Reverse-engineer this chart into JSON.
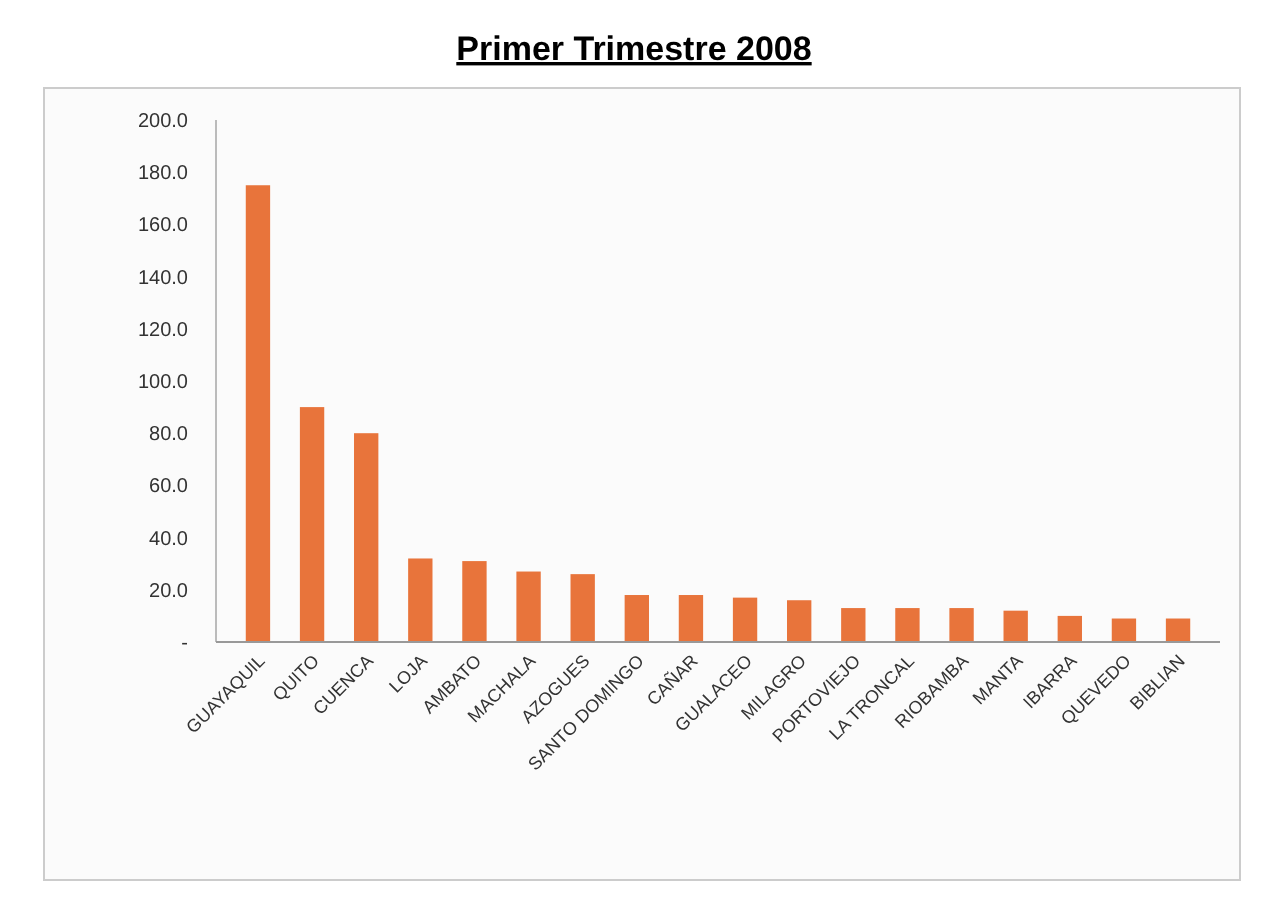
{
  "chart_data": {
    "type": "bar",
    "title": "Primer Trimestre 2008",
    "categories": [
      "GUAYAQUIL",
      "QUITO",
      "CUENCA",
      "LOJA",
      "AMBATO",
      "MACHALA",
      "AZOGUES",
      "SANTO DOMINGO",
      "CAÑAR",
      "GUALACEO",
      "MILAGRO",
      "PORTOVIEJO",
      "LA TRONCAL",
      "RIOBAMBA",
      "MANTA",
      "IBARRA",
      "QUEVEDO",
      "BIBLIAN"
    ],
    "values": [
      175,
      90,
      80,
      32,
      31,
      27,
      26,
      18,
      18,
      17,
      16,
      13,
      13,
      13,
      12,
      10,
      9,
      9
    ],
    "color": "#e8743b",
    "ylim": [
      0,
      200
    ],
    "yticks": [
      {
        "value": 0,
        "label": "-"
      },
      {
        "value": 20,
        "label": "20.0"
      },
      {
        "value": 40,
        "label": "40.0"
      },
      {
        "value": 60,
        "label": "60.0"
      },
      {
        "value": 80,
        "label": "80.0"
      },
      {
        "value": 100,
        "label": "100.0"
      },
      {
        "value": 120,
        "label": "120.0"
      },
      {
        "value": 140,
        "label": "140.0"
      },
      {
        "value": 160,
        "label": "160.0"
      },
      {
        "value": 180,
        "label": "180.0"
      },
      {
        "value": 200,
        "label": "200.0"
      }
    ],
    "grid": false
  }
}
